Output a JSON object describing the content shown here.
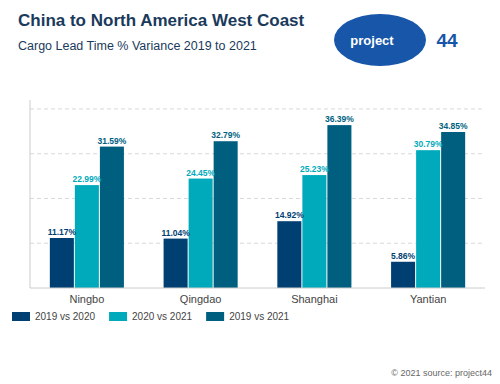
{
  "chart_data": {
    "type": "bar",
    "title": "China to North America West Coast",
    "subtitle": "Cargo Lead Time % Variance 2019 to 2021",
    "categories": [
      "Ningbo",
      "Qingdao",
      "Shanghai",
      "Yantian"
    ],
    "series": [
      {
        "name": "2019 vs 2020",
        "color": "#003F72",
        "values": [
          11.17,
          11.04,
          14.92,
          5.86
        ],
        "value_labels": [
          "11.17%",
          "11.04%",
          "14.92%",
          "5.86%"
        ]
      },
      {
        "name": "2020 vs 2021",
        "color": "#00AABB",
        "values": [
          22.99,
          24.45,
          25.23,
          30.79
        ],
        "value_labels": [
          "22.99%",
          "24.45%",
          "25.23%",
          "30.79%"
        ]
      },
      {
        "name": "2019 vs 2021",
        "color": "#005F7F",
        "values": [
          31.59,
          32.79,
          36.39,
          34.85
        ],
        "value_labels": [
          "31.59%",
          "32.79%",
          "36.39%",
          "34.85%"
        ]
      }
    ],
    "ylim": [
      0,
      42
    ],
    "yticks": [
      10,
      20,
      30,
      40
    ],
    "grid": true,
    "data_labels": true,
    "tick_labels": "x",
    "legend": "bottom",
    "annotations": [
      {
        "text": "© 2021 source: project44"
      },
      {
        "text": "project"
      },
      {
        "text": "44",
        "color": "#1756A9"
      }
    ]
  }
}
